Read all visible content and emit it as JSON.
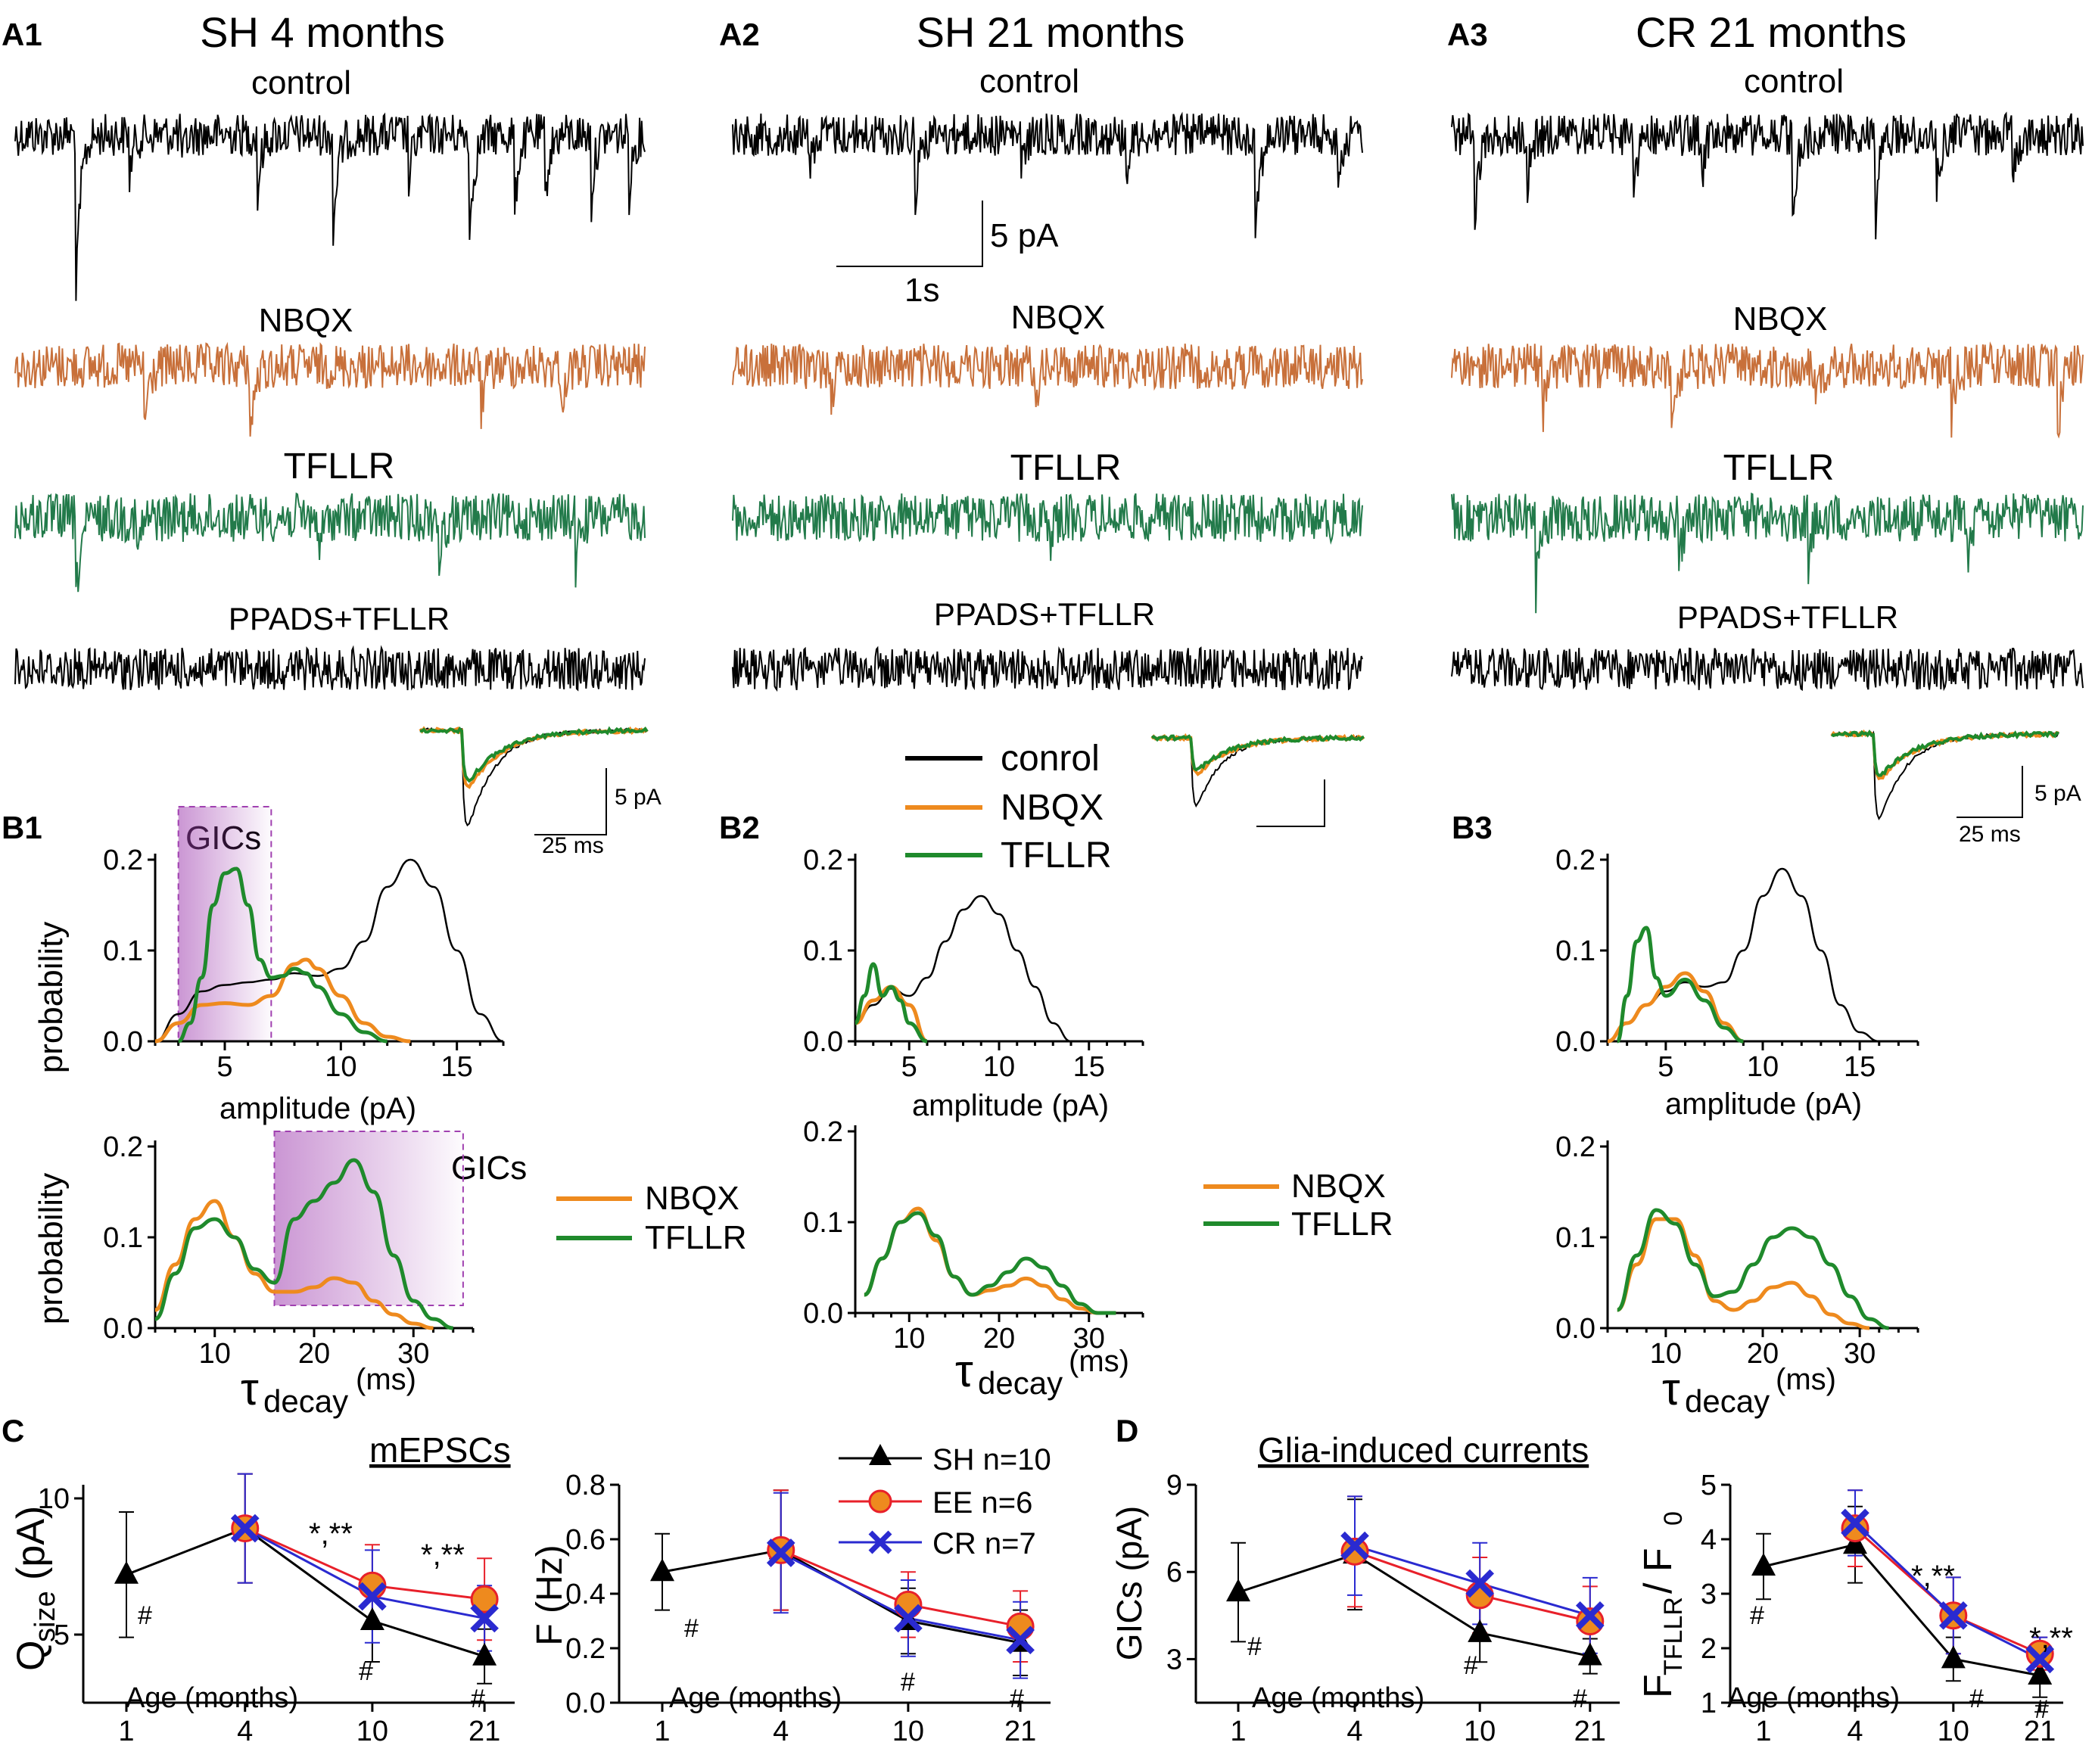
{
  "colors": {
    "black": "#000000",
    "orange": "#ee8a1e",
    "green": "#1f8a2c",
    "trace_orange": "#c8703a",
    "trace_green": "#227a4a",
    "gic_box": "#a040b0",
    "ee_fill": "#ee8a1e",
    "ee_edge": "#e8202a",
    "cr": "#2a2ad0"
  },
  "panels": {
    "A1": {
      "tag": "A1",
      "title": "SH 4 months"
    },
    "A2": {
      "tag": "A2",
      "title": "SH 21 months"
    },
    "A3": {
      "tag": "A3",
      "title": "CR 21 months"
    },
    "B1": "B1",
    "B2": "B2",
    "B3": "B3",
    "C": "C",
    "D": "D"
  },
  "conditions": {
    "control": "control",
    "nbqx": "NBQX",
    "tfllr": "TFLLR",
    "ppads": "PPADS+TFLLR"
  },
  "scalebars": {
    "a_amp": "5 pA",
    "a_time": "1s",
    "b_amp": "5 pA",
    "b_time": "25 ms"
  },
  "legend_top": {
    "control": "conrol",
    "nbqx": "NBQX",
    "tfllr": "TFLLR"
  },
  "legend_decay": {
    "nbqx": "NBQX",
    "tfllr": "TFLLR"
  },
  "gics_label": "GICs",
  "axes_labels": {
    "probability": "probability",
    "amplitude": "amplitude   (pA)",
    "tau": "τ",
    "decay": "decay",
    "ms": "(ms)"
  },
  "section_titles": {
    "c": "mEPSCs",
    "d": "Glia-induced currents"
  },
  "legend_groups": {
    "sh": "SH n=10",
    "ee": "EE n=6",
    "cr": "CR n=7"
  },
  "age_label": "Age (months)",
  "ylabels": {
    "q_main": "Q",
    "q_sub": "size",
    "q_unit": " (pA)",
    "f": "F (Hz)",
    "gic": "GICs (pA)",
    "ratio_main": "F",
    "ratio_sub": "TFLLR",
    "ratio_mid": " / F",
    "ratio_sub2": "0"
  },
  "sig_marks": {
    "star": "*,**",
    "hash": "#"
  },
  "chart_data": [
    {
      "type": "line",
      "id": "B1_amplitude",
      "xlabel": "amplitude (pA)",
      "ylabel": "probability",
      "xlim": [
        2,
        17
      ],
      "ylim": [
        0,
        0.2
      ],
      "xticks": [
        5,
        10,
        15
      ],
      "yticks": [
        0.0,
        0.1,
        0.2
      ],
      "gics_range": [
        3,
        7
      ],
      "series": [
        {
          "name": "control",
          "x": [
            2,
            3,
            4,
            5,
            6,
            7,
            8,
            9,
            10,
            11,
            12,
            13,
            14,
            15,
            16,
            17
          ],
          "values": [
            0.0,
            0.03,
            0.055,
            0.062,
            0.065,
            0.068,
            0.075,
            0.072,
            0.08,
            0.11,
            0.17,
            0.2,
            0.17,
            0.1,
            0.03,
            0.0
          ]
        },
        {
          "name": "NBQX",
          "x": [
            2,
            3,
            4,
            5,
            6,
            7,
            8,
            8.5,
            9,
            10,
            11,
            12,
            13
          ],
          "values": [
            0.0,
            0.02,
            0.04,
            0.042,
            0.04,
            0.05,
            0.085,
            0.09,
            0.08,
            0.05,
            0.02,
            0.005,
            0.0
          ]
        },
        {
          "name": "TFLLR",
          "x": [
            3,
            3.5,
            4,
            4.5,
            5,
            5.5,
            6,
            6.5,
            7,
            7.5,
            8,
            8.5,
            9,
            10,
            11,
            12
          ],
          "values": [
            0.0,
            0.02,
            0.07,
            0.15,
            0.185,
            0.19,
            0.15,
            0.09,
            0.07,
            0.072,
            0.08,
            0.075,
            0.06,
            0.03,
            0.01,
            0.0
          ]
        }
      ]
    },
    {
      "type": "line",
      "id": "B1_decay",
      "xlabel": "τdecay (ms)",
      "ylabel": "probability",
      "xlim": [
        4,
        36
      ],
      "ylim": [
        0,
        0.2
      ],
      "xticks": [
        10,
        20,
        30
      ],
      "yticks": [
        0.0,
        0.1,
        0.2
      ],
      "gics_range": [
        16,
        35
      ],
      "series": [
        {
          "name": "NBQX",
          "x": [
            4,
            6,
            8,
            10,
            12,
            14,
            16,
            18,
            20,
            22,
            24,
            26,
            28,
            30,
            32
          ],
          "values": [
            0.02,
            0.07,
            0.12,
            0.14,
            0.1,
            0.06,
            0.04,
            0.04,
            0.045,
            0.055,
            0.05,
            0.03,
            0.015,
            0.005,
            0.0
          ]
        },
        {
          "name": "TFLLR",
          "x": [
            4,
            6,
            8,
            10,
            12,
            14,
            16,
            18,
            20,
            22,
            24,
            26,
            28,
            30,
            32,
            34
          ],
          "values": [
            0.01,
            0.06,
            0.11,
            0.12,
            0.1,
            0.065,
            0.05,
            0.12,
            0.14,
            0.16,
            0.185,
            0.15,
            0.08,
            0.03,
            0.01,
            0.0
          ]
        }
      ]
    },
    {
      "type": "line",
      "id": "B2_amplitude",
      "xlabel": "amplitude (pA)",
      "ylabel": "",
      "xlim": [
        2,
        18
      ],
      "ylim": [
        0,
        0.2
      ],
      "xticks": [
        5,
        10,
        15
      ],
      "yticks": [
        0.0,
        0.1,
        0.2
      ],
      "series": [
        {
          "name": "control",
          "x": [
            2,
            3,
            4,
            5,
            6,
            7,
            8,
            9,
            10,
            11,
            12,
            13,
            14
          ],
          "values": [
            0.02,
            0.04,
            0.058,
            0.05,
            0.07,
            0.11,
            0.145,
            0.16,
            0.14,
            0.1,
            0.06,
            0.02,
            0.0
          ]
        },
        {
          "name": "NBQX",
          "x": [
            2,
            3,
            4,
            5,
            6
          ],
          "values": [
            0.02,
            0.045,
            0.06,
            0.04,
            0.0
          ]
        },
        {
          "name": "TFLLR",
          "x": [
            2,
            2.5,
            3,
            3.5,
            4,
            4.5,
            5,
            6
          ],
          "values": [
            0.02,
            0.05,
            0.085,
            0.05,
            0.06,
            0.045,
            0.02,
            0.0
          ]
        }
      ]
    },
    {
      "type": "line",
      "id": "B2_decay",
      "xlabel": "τdecay (ms)",
      "ylabel": "",
      "xlim": [
        4,
        36
      ],
      "ylim": [
        0,
        0.2
      ],
      "xticks": [
        10,
        20,
        30
      ],
      "yticks": [
        0.0,
        0.1,
        0.2
      ],
      "series": [
        {
          "name": "NBQX",
          "x": [
            5,
            7,
            9,
            11,
            13,
            15,
            17,
            19,
            21,
            23,
            25,
            27,
            29,
            31,
            33
          ],
          "values": [
            0.02,
            0.06,
            0.1,
            0.115,
            0.08,
            0.04,
            0.02,
            0.025,
            0.03,
            0.038,
            0.03,
            0.015,
            0.005,
            0.0,
            0.0
          ]
        },
        {
          "name": "TFLLR",
          "x": [
            5,
            7,
            9,
            11,
            13,
            15,
            17,
            19,
            21,
            23,
            25,
            27,
            29,
            31,
            33
          ],
          "values": [
            0.02,
            0.06,
            0.1,
            0.11,
            0.085,
            0.04,
            0.02,
            0.03,
            0.045,
            0.06,
            0.05,
            0.03,
            0.01,
            0.0,
            0.0
          ]
        }
      ]
    },
    {
      "type": "line",
      "id": "B3_amplitude",
      "xlabel": "amplitude (pA)",
      "ylabel": "",
      "xlim": [
        2,
        18
      ],
      "ylim": [
        0,
        0.2
      ],
      "xticks": [
        5,
        10,
        15
      ],
      "yticks": [
        0.0,
        0.1,
        0.2
      ],
      "series": [
        {
          "name": "control",
          "x": [
            2,
            3,
            4,
            5,
            6,
            7,
            8,
            9,
            10,
            11,
            12,
            13,
            14,
            15,
            16
          ],
          "values": [
            0.0,
            0.02,
            0.04,
            0.055,
            0.065,
            0.06,
            0.065,
            0.1,
            0.16,
            0.19,
            0.16,
            0.1,
            0.04,
            0.01,
            0.0
          ]
        },
        {
          "name": "NBQX",
          "x": [
            2,
            3,
            4,
            5,
            6,
            7,
            8,
            9
          ],
          "values": [
            0.0,
            0.02,
            0.04,
            0.06,
            0.075,
            0.055,
            0.02,
            0.0
          ]
        },
        {
          "name": "TFLLR",
          "x": [
            2.5,
            3,
            3.5,
            4,
            4.5,
            5,
            6,
            7,
            8,
            9
          ],
          "values": [
            0.0,
            0.05,
            0.11,
            0.125,
            0.07,
            0.05,
            0.068,
            0.045,
            0.015,
            0.0
          ]
        }
      ]
    },
    {
      "type": "line",
      "id": "B3_decay",
      "xlabel": "τdecay (ms)",
      "ylabel": "",
      "xlim": [
        4,
        36
      ],
      "ylim": [
        0,
        0.2
      ],
      "xticks": [
        10,
        20,
        30
      ],
      "yticks": [
        0.0,
        0.1,
        0.2
      ],
      "series": [
        {
          "name": "NBQX",
          "x": [
            5,
            7,
            9,
            11,
            13,
            15,
            17,
            19,
            21,
            23,
            25,
            27,
            29,
            31
          ],
          "values": [
            0.02,
            0.07,
            0.12,
            0.12,
            0.08,
            0.03,
            0.02,
            0.03,
            0.045,
            0.05,
            0.035,
            0.015,
            0.005,
            0.0
          ]
        },
        {
          "name": "TFLLR",
          "x": [
            5,
            7,
            9,
            11,
            13,
            15,
            17,
            19,
            21,
            23,
            25,
            27,
            29,
            31,
            33
          ],
          "values": [
            0.02,
            0.08,
            0.13,
            0.115,
            0.07,
            0.035,
            0.04,
            0.07,
            0.1,
            0.11,
            0.1,
            0.07,
            0.035,
            0.01,
            0.0
          ]
        }
      ]
    },
    {
      "type": "line",
      "id": "C_qsize",
      "ylabel": "Qsize (pA)",
      "xlabel": "Age (months)",
      "categories": [
        "1",
        "4",
        "10",
        "21"
      ],
      "ylim": [
        2.5,
        10.5
      ],
      "yticks": [
        5,
        10
      ],
      "series": [
        {
          "name": "SH",
          "x": [
            1,
            4,
            10,
            21
          ],
          "values": [
            7.2,
            8.9,
            5.5,
            4.2
          ],
          "err": [
            2.3,
            2.0,
            1.5,
            1.0
          ]
        },
        {
          "name": "EE",
          "x": [
            4,
            10,
            21
          ],
          "values": [
            8.9,
            6.8,
            6.3
          ],
          "err": [
            2.0,
            1.5,
            1.5
          ]
        },
        {
          "name": "CR",
          "x": [
            4,
            10,
            21
          ],
          "values": [
            8.9,
            6.4,
            5.6
          ],
          "err": [
            2.0,
            1.7,
            1.2
          ]
        }
      ]
    },
    {
      "type": "line",
      "id": "C_freq",
      "ylabel": "F (Hz)",
      "xlabel": "Age (months)",
      "categories": [
        "1",
        "4",
        "10",
        "21"
      ],
      "ylim": [
        0,
        0.8
      ],
      "yticks": [
        0.0,
        0.2,
        0.4,
        0.6,
        0.8
      ],
      "series": [
        {
          "name": "SH",
          "x": [
            1,
            4,
            10,
            21
          ],
          "values": [
            0.48,
            0.56,
            0.3,
            0.22
          ],
          "err": [
            0.14,
            0.22,
            0.12,
            0.12
          ]
        },
        {
          "name": "EE",
          "x": [
            4,
            10,
            21
          ],
          "values": [
            0.56,
            0.36,
            0.28
          ],
          "err": [
            0.22,
            0.12,
            0.13
          ]
        },
        {
          "name": "CR",
          "x": [
            4,
            10,
            21
          ],
          "values": [
            0.55,
            0.31,
            0.23
          ],
          "err": [
            0.22,
            0.14,
            0.14
          ]
        }
      ]
    },
    {
      "type": "line",
      "id": "D_gic",
      "ylabel": "GICs (pA)",
      "xlabel": "Age (months)",
      "categories": [
        "1",
        "4",
        "10",
        "21"
      ],
      "ylim": [
        1.5,
        9
      ],
      "yticks": [
        3,
        6,
        9
      ],
      "series": [
        {
          "name": "SH",
          "x": [
            1,
            4,
            10,
            21
          ],
          "values": [
            5.3,
            6.6,
            3.9,
            3.1
          ],
          "err": [
            1.7,
            1.9,
            1.0,
            0.6
          ]
        },
        {
          "name": "EE",
          "x": [
            4,
            10,
            21
          ],
          "values": [
            6.7,
            5.2,
            4.3
          ],
          "err": [
            1.9,
            1.3,
            1.2
          ]
        },
        {
          "name": "CR",
          "x": [
            4,
            10,
            21
          ],
          "values": [
            6.9,
            5.6,
            4.5
          ],
          "err": [
            1.7,
            1.4,
            1.3
          ]
        }
      ]
    },
    {
      "type": "line",
      "id": "D_ratio",
      "ylabel": "FTFLLR / F0",
      "xlabel": "Age (months)",
      "categories": [
        "1",
        "4",
        "10",
        "21"
      ],
      "ylim": [
        1,
        5
      ],
      "yticks": [
        1,
        2,
        3,
        4,
        5
      ],
      "series": [
        {
          "name": "SH",
          "x": [
            1,
            4,
            10,
            21
          ],
          "values": [
            3.5,
            3.9,
            1.8,
            1.5
          ],
          "err": [
            0.6,
            0.7,
            0.4,
            0.4
          ]
        },
        {
          "name": "EE",
          "x": [
            4,
            10,
            21
          ],
          "values": [
            4.2,
            2.6,
            1.9
          ],
          "err": [
            0.7,
            0.7,
            0.3
          ]
        },
        {
          "name": "CR",
          "x": [
            4,
            10,
            21
          ],
          "values": [
            4.3,
            2.6,
            1.8
          ],
          "err": [
            0.6,
            0.7,
            0.4
          ]
        }
      ]
    }
  ]
}
